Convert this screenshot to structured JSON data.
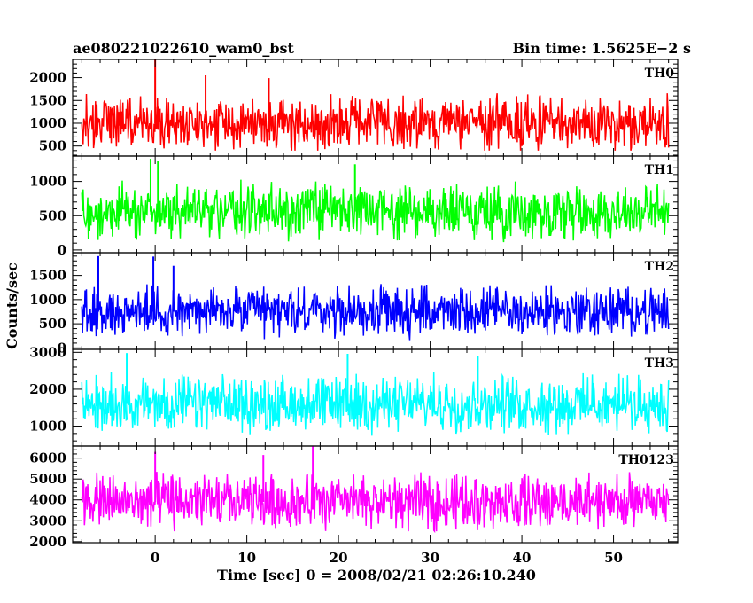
{
  "header": {
    "title": "ae080221022610_wam0_bst",
    "bin_time": "Bin time: 1.5625E−2 s"
  },
  "chart_data": {
    "type": "line",
    "xlabel": "Time [sec] 0 = 2008/02/21 02:26:10.240",
    "ylabel": "Counts/sec",
    "xlim": [
      -9,
      57
    ],
    "x_ticks": [
      0,
      10,
      20,
      30,
      40,
      50
    ],
    "x_minor_step": 2,
    "data_x_range": [
      -8,
      56
    ],
    "grid": false,
    "panels": [
      {
        "name": "TH0",
        "color": "#ff0000",
        "ylim": [
          280,
          2400
        ],
        "y_ticks": [
          500,
          1000,
          1500,
          2000
        ],
        "y_minor_step": 100,
        "mean": 1000,
        "low": 400,
        "high": 1750,
        "spread": 1000,
        "spikes": [
          {
            "x": 0.0,
            "y": 2390
          },
          {
            "x": 5.5,
            "y": 2050
          },
          {
            "x": 12.4,
            "y": 1990
          }
        ]
      },
      {
        "name": "TH1",
        "color": "#00ff00",
        "ylim": [
          -40,
          1370
        ],
        "y_ticks": [
          0,
          500,
          1000
        ],
        "y_minor_step": 100,
        "mean": 560,
        "low": 100,
        "high": 1150,
        "spread": 700,
        "spikes": [
          {
            "x": -0.5,
            "y": 1330
          },
          {
            "x": 0.3,
            "y": 1300
          },
          {
            "x": 21.8,
            "y": 1250
          }
        ]
      },
      {
        "name": "TH2",
        "color": "#0000ff",
        "ylim": [
          -30,
          1970
        ],
        "y_ticks": [
          0,
          500,
          1000,
          1500
        ],
        "y_minor_step": 100,
        "mean": 750,
        "low": 100,
        "high": 1500,
        "spread": 900,
        "spikes": [
          {
            "x": -6.2,
            "y": 1900
          },
          {
            "x": -0.2,
            "y": 1890
          },
          {
            "x": 2.0,
            "y": 1700
          }
        ]
      },
      {
        "name": "TH3",
        "color": "#00ffff",
        "ylim": [
          460,
          3080
        ],
        "y_ticks": [
          1000,
          2000,
          3000
        ],
        "y_minor_step": 200,
        "mean": 1600,
        "low": 700,
        "high": 2650,
        "spread": 1300,
        "spikes": [
          {
            "x": -3.1,
            "y": 2980
          },
          {
            "x": 21.0,
            "y": 2960
          },
          {
            "x": 35.2,
            "y": 2900
          }
        ]
      },
      {
        "name": "TH0123",
        "color": "#ff00ff",
        "ylim": [
          1950,
          6580
        ],
        "y_ticks": [
          2000,
          3000,
          4000,
          5000,
          6000
        ],
        "y_minor_step": 200,
        "mean": 3900,
        "low": 2500,
        "high": 5600,
        "spread": 2300,
        "spikes": [
          {
            "x": 17.2,
            "y": 6570
          },
          {
            "x": 0.0,
            "y": 6300
          },
          {
            "x": 11.8,
            "y": 6150
          }
        ]
      }
    ]
  }
}
